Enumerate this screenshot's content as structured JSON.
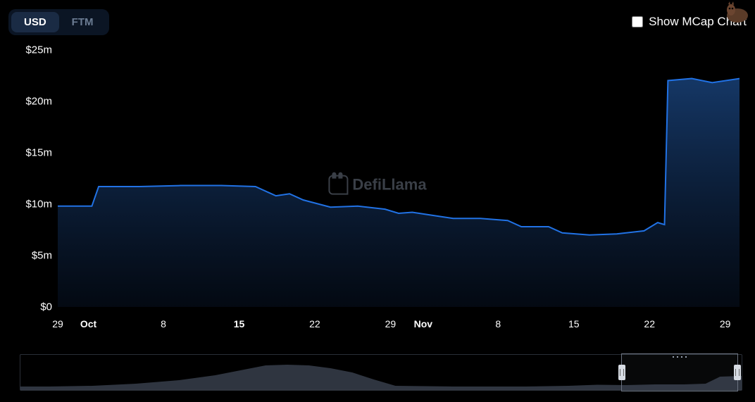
{
  "toggle": {
    "options": [
      "USD",
      "FTM"
    ],
    "active_index": 0
  },
  "mcap_toggle": {
    "label": "Show MCap Chart",
    "checked": false
  },
  "watermark": "DefiLlama",
  "chart": {
    "type": "area",
    "background_color": "#000000",
    "line_color": "#2172e5",
    "line_width": 2,
    "fill_top": "#163a6b",
    "fill_bottom": "#050d1a",
    "fill_opacity": 0.95,
    "y_axis": {
      "min": 0,
      "max": 26,
      "ticks": [
        {
          "value": 0,
          "label": "$0"
        },
        {
          "value": 5,
          "label": "$5m"
        },
        {
          "value": 10,
          "label": "$10m"
        },
        {
          "value": 15,
          "label": "$15m"
        },
        {
          "value": 20,
          "label": "$20m"
        },
        {
          "value": 25,
          "label": "$25m"
        }
      ],
      "label_fontsize": 15,
      "label_color": "#ffffff"
    },
    "x_axis": {
      "ticks": [
        {
          "pos": 0.0,
          "label": "29",
          "bold": false
        },
        {
          "pos": 0.045,
          "label": "Oct",
          "bold": true
        },
        {
          "pos": 0.155,
          "label": "8",
          "bold": false
        },
        {
          "pos": 0.266,
          "label": "15",
          "bold": true
        },
        {
          "pos": 0.377,
          "label": "22",
          "bold": false
        },
        {
          "pos": 0.488,
          "label": "29",
          "bold": false
        },
        {
          "pos": 0.536,
          "label": "Nov",
          "bold": true
        },
        {
          "pos": 0.646,
          "label": "8",
          "bold": false
        },
        {
          "pos": 0.757,
          "label": "15",
          "bold": false
        },
        {
          "pos": 0.868,
          "label": "22",
          "bold": false
        },
        {
          "pos": 0.979,
          "label": "29",
          "bold": false
        }
      ],
      "label_fontsize": 14,
      "label_color": "#ffffff"
    },
    "series": [
      {
        "x": 0.0,
        "y": 9.8
      },
      {
        "x": 0.03,
        "y": 9.8
      },
      {
        "x": 0.05,
        "y": 9.8
      },
      {
        "x": 0.06,
        "y": 11.7
      },
      {
        "x": 0.12,
        "y": 11.7
      },
      {
        "x": 0.18,
        "y": 11.8
      },
      {
        "x": 0.24,
        "y": 11.8
      },
      {
        "x": 0.29,
        "y": 11.7
      },
      {
        "x": 0.3,
        "y": 11.4
      },
      {
        "x": 0.32,
        "y": 10.8
      },
      {
        "x": 0.34,
        "y": 11.0
      },
      {
        "x": 0.36,
        "y": 10.4
      },
      {
        "x": 0.4,
        "y": 9.7
      },
      {
        "x": 0.44,
        "y": 9.8
      },
      {
        "x": 0.48,
        "y": 9.5
      },
      {
        "x": 0.5,
        "y": 9.1
      },
      {
        "x": 0.52,
        "y": 9.2
      },
      {
        "x": 0.56,
        "y": 8.8
      },
      {
        "x": 0.58,
        "y": 8.6
      },
      {
        "x": 0.62,
        "y": 8.6
      },
      {
        "x": 0.66,
        "y": 8.4
      },
      {
        "x": 0.68,
        "y": 7.8
      },
      {
        "x": 0.72,
        "y": 7.8
      },
      {
        "x": 0.74,
        "y": 7.2
      },
      {
        "x": 0.78,
        "y": 7.0
      },
      {
        "x": 0.82,
        "y": 7.1
      },
      {
        "x": 0.86,
        "y": 7.4
      },
      {
        "x": 0.88,
        "y": 8.2
      },
      {
        "x": 0.89,
        "y": 8.0
      },
      {
        "x": 0.895,
        "y": 22.0
      },
      {
        "x": 0.93,
        "y": 22.2
      },
      {
        "x": 0.96,
        "y": 21.8
      },
      {
        "x": 1.0,
        "y": 22.2
      }
    ]
  },
  "brush": {
    "border_color": "#2a2f38",
    "fill_color": "#2f3540",
    "selection": {
      "start": 0.833,
      "end": 0.995
    },
    "selection_border": "#6b7280",
    "handle_color": "#d6dbe3",
    "series": [
      {
        "x": 0.0,
        "y": 0.1
      },
      {
        "x": 0.04,
        "y": 0.1
      },
      {
        "x": 0.1,
        "y": 0.12
      },
      {
        "x": 0.16,
        "y": 0.18
      },
      {
        "x": 0.22,
        "y": 0.28
      },
      {
        "x": 0.27,
        "y": 0.42
      },
      {
        "x": 0.31,
        "y": 0.58
      },
      {
        "x": 0.34,
        "y": 0.7
      },
      {
        "x": 0.37,
        "y": 0.72
      },
      {
        "x": 0.4,
        "y": 0.7
      },
      {
        "x": 0.43,
        "y": 0.62
      },
      {
        "x": 0.46,
        "y": 0.5
      },
      {
        "x": 0.49,
        "y": 0.3
      },
      {
        "x": 0.52,
        "y": 0.12
      },
      {
        "x": 0.6,
        "y": 0.1
      },
      {
        "x": 0.7,
        "y": 0.1
      },
      {
        "x": 0.76,
        "y": 0.12
      },
      {
        "x": 0.8,
        "y": 0.15
      },
      {
        "x": 0.84,
        "y": 0.14
      },
      {
        "x": 0.88,
        "y": 0.16
      },
      {
        "x": 0.92,
        "y": 0.16
      },
      {
        "x": 0.95,
        "y": 0.18
      },
      {
        "x": 0.97,
        "y": 0.38
      },
      {
        "x": 1.0,
        "y": 0.4
      }
    ]
  }
}
